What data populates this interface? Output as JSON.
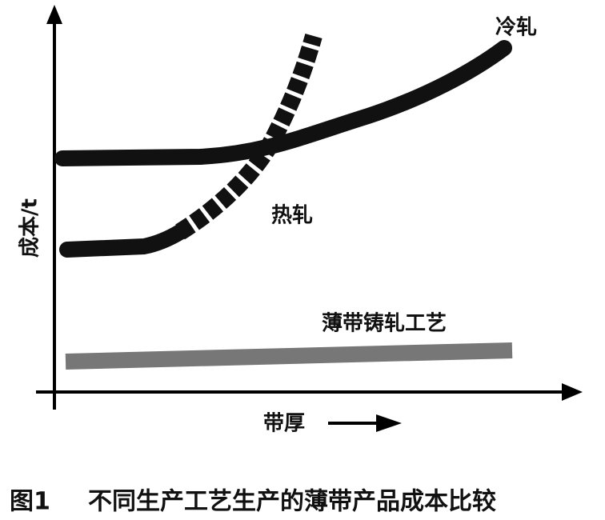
{
  "diagram": {
    "y_axis_label": "成本/t",
    "x_axis_label": "带厚",
    "curves": [
      {
        "label": "冷轧"
      },
      {
        "label": "热轧"
      },
      {
        "label": "薄带铸轧工艺"
      }
    ],
    "caption": {
      "number": "图1",
      "text": "不同生产工艺生产的薄带产品成本比较"
    }
  }
}
